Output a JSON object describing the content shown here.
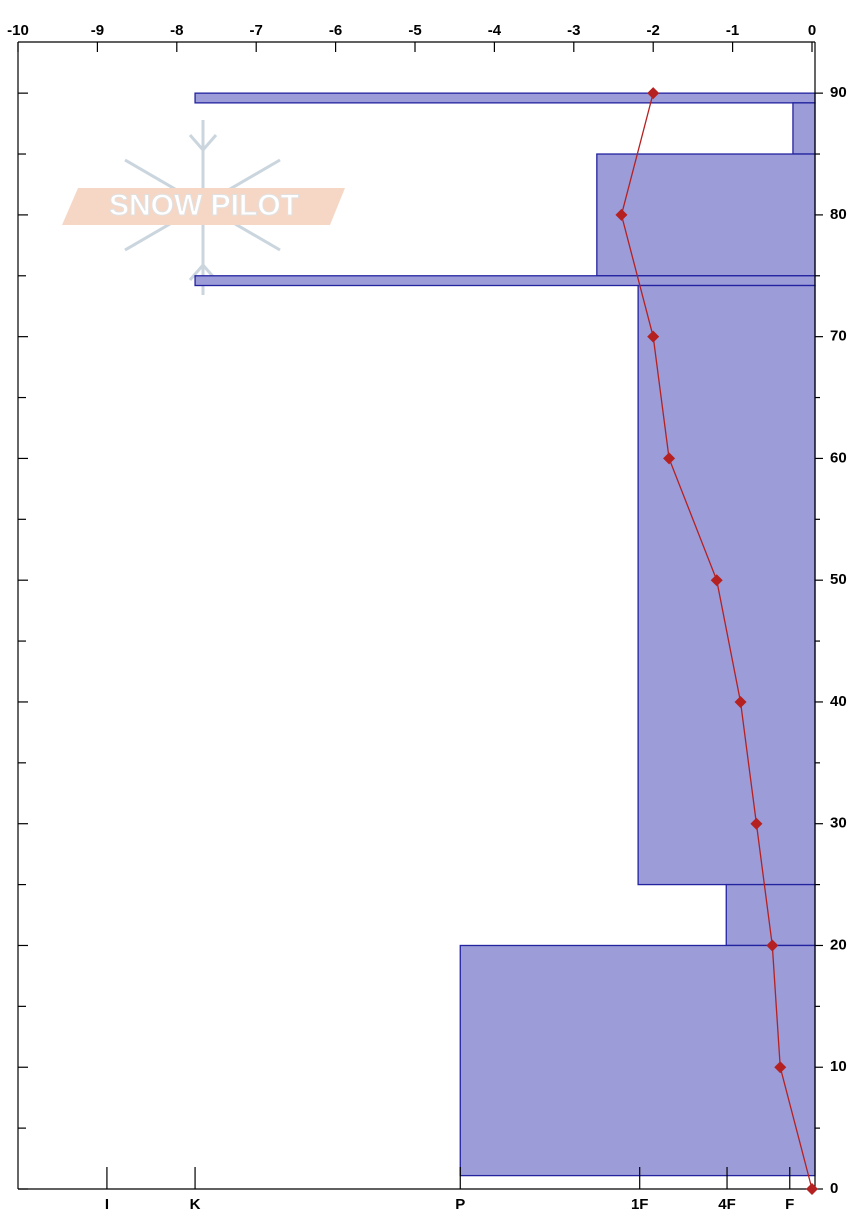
{
  "chart_data": {
    "type": "snow-profile",
    "watermark": "SNOW PILOT",
    "xlim": [
      -10,
      0
    ],
    "xticks": [
      -10,
      -9,
      -8,
      -7,
      -6,
      -5,
      -4,
      -3,
      -2,
      -1,
      0
    ],
    "ylim": [
      0,
      94.2
    ],
    "yticks": [
      0,
      10,
      20,
      30,
      40,
      50,
      60,
      70,
      80,
      90
    ],
    "yminor": [
      5,
      15,
      25,
      35,
      45,
      55,
      65,
      75,
      85
    ],
    "hardness_ticks": [
      {
        "value": -8.88,
        "label": "I"
      },
      {
        "value": -7.77,
        "label": "K"
      },
      {
        "value": -4.43,
        "label": "P"
      },
      {
        "value": -2.17,
        "label": "1F"
      },
      {
        "value": -1.07,
        "label": "4F"
      },
      {
        "value": -0.28,
        "label": "F"
      }
    ],
    "layer_color": "#9c9cd8",
    "layer_edge": "#2323a0",
    "layers": {
      "top": [
        90,
        89.2,
        85,
        75,
        74.2,
        25,
        20
      ],
      "bottom": [
        89.2,
        85,
        75,
        74.2,
        25,
        20,
        1.1
      ],
      "left": [
        -7.77,
        -0.24,
        -2.71,
        -7.77,
        -2.19,
        -1.08,
        -4.43
      ]
    },
    "temperature": {
      "color": "#b52020",
      "depth": [
        90,
        80,
        70,
        60,
        50,
        40,
        30,
        20,
        10,
        0
      ],
      "values": [
        -2.0,
        -2.4,
        -2.0,
        -1.8,
        -1.2,
        -0.9,
        -0.7,
        -0.5,
        -0.4,
        0
      ]
    }
  }
}
